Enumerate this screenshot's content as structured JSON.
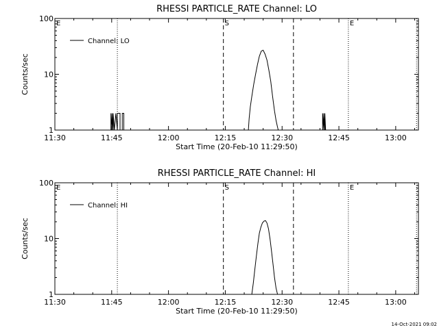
{
  "chart_data": [
    {
      "type": "line",
      "title": "RHESSI PARTICLE_RATE Channel: LO",
      "xlabel": "Start Time (20-Feb-10 11:29:50)",
      "ylabel": "Counts/sec",
      "yscale": "log",
      "ylim": [
        1,
        100
      ],
      "xlim_minutes": [
        0,
        96
      ],
      "x_ticks": [
        {
          "t": 0,
          "label": "11:30"
        },
        {
          "t": 15,
          "label": "11:45"
        },
        {
          "t": 30,
          "label": "12:00"
        },
        {
          "t": 45,
          "label": "12:15"
        },
        {
          "t": 60,
          "label": "12:30"
        },
        {
          "t": 75,
          "label": "12:45"
        },
        {
          "t": 90,
          "label": "13:00"
        }
      ],
      "y_ticks": [
        {
          "v": 1,
          "label": "1"
        },
        {
          "v": 10,
          "label": "10"
        },
        {
          "v": 100,
          "label": "100"
        }
      ],
      "legend": {
        "label": "Channel: LO",
        "position": "top-left"
      },
      "markers": [
        {
          "t": 0,
          "label": "E",
          "style": "dotted"
        },
        {
          "t": 16.5,
          "label": "",
          "style": "dotted"
        },
        {
          "t": 44.5,
          "label": "S",
          "style": "dashed"
        },
        {
          "t": 63,
          "label": "",
          "style": "dashed"
        },
        {
          "t": 77.5,
          "label": "E",
          "style": "dotted"
        },
        {
          "t": 95.5,
          "label": "",
          "style": "dotted"
        }
      ],
      "series": [
        {
          "name": "Channel: LO",
          "x": [
            14.8,
            14.8,
            15.1,
            15.1,
            15.4,
            15.4,
            15.7,
            15.7,
            16.1,
            16.1,
            16.5,
            16.5,
            17.2,
            17.2,
            17.8,
            17.8,
            18.2,
            18.2,
            51.1,
            51.3,
            51.6,
            52.0,
            52.5,
            53.0,
            53.5,
            54.0,
            54.5,
            55.0,
            55.5,
            56.0,
            56.5,
            57.0,
            57.5,
            58.0,
            58.4,
            58.7,
            58.9,
            59.0,
            70.7,
            70.7,
            71.0,
            71.0,
            71.3,
            71.3,
            71.5,
            71.5
          ],
          "y": [
            1,
            2,
            1,
            2,
            1,
            2,
            1,
            1,
            2,
            2,
            1,
            2,
            2,
            1,
            1,
            2,
            2,
            1,
            1,
            1.6,
            2.6,
            4,
            6.5,
            10,
            15,
            21,
            26,
            27,
            23,
            18,
            12,
            7.5,
            4,
            2.2,
            1.5,
            1.2,
            1.05,
            1,
            1,
            2,
            1,
            2,
            1,
            2,
            1,
            1
          ],
          "segments": [
            [
              0,
              18
            ],
            [
              18,
              38
            ],
            [
              38,
              46
            ]
          ]
        }
      ]
    },
    {
      "type": "line",
      "title": "RHESSI PARTICLE_RATE Channel: HI",
      "xlabel": "Start Time (20-Feb-10 11:29:50)",
      "ylabel": "Counts/sec",
      "yscale": "log",
      "ylim": [
        1,
        100
      ],
      "xlim_minutes": [
        0,
        96
      ],
      "x_ticks": [
        {
          "t": 0,
          "label": "11:30"
        },
        {
          "t": 15,
          "label": "11:45"
        },
        {
          "t": 30,
          "label": "12:00"
        },
        {
          "t": 45,
          "label": "12:15"
        },
        {
          "t": 60,
          "label": "12:30"
        },
        {
          "t": 75,
          "label": "12:45"
        },
        {
          "t": 90,
          "label": "13:00"
        }
      ],
      "y_ticks": [
        {
          "v": 1,
          "label": "1"
        },
        {
          "v": 10,
          "label": "10"
        },
        {
          "v": 100,
          "label": "100"
        }
      ],
      "legend": {
        "label": "Channel: HI",
        "position": "top-left"
      },
      "markers": [
        {
          "t": 0,
          "label": "E",
          "style": "dotted"
        },
        {
          "t": 16.5,
          "label": "",
          "style": "dotted"
        },
        {
          "t": 44.5,
          "label": "S",
          "style": "dashed"
        },
        {
          "t": 63,
          "label": "",
          "style": "dashed"
        },
        {
          "t": 77.5,
          "label": "E",
          "style": "dotted"
        },
        {
          "t": 95.5,
          "label": "",
          "style": "dotted"
        }
      ],
      "series": [
        {
          "name": "Channel: HI",
          "x": [
            52.0,
            52.4,
            52.8,
            53.2,
            53.6,
            54.0,
            54.4,
            54.8,
            55.2,
            55.6,
            56.0,
            56.4,
            56.8,
            57.2,
            57.6,
            58.0,
            58.4,
            58.8
          ],
          "y": [
            1,
            1.6,
            2.8,
            4.8,
            8,
            12.5,
            16,
            19,
            20.5,
            21,
            19,
            15,
            10,
            6,
            3.5,
            2,
            1.3,
            1
          ],
          "segments": [
            [
              0,
              18
            ]
          ]
        }
      ]
    }
  ],
  "timestamp": "14-Oct-2021 09:02"
}
